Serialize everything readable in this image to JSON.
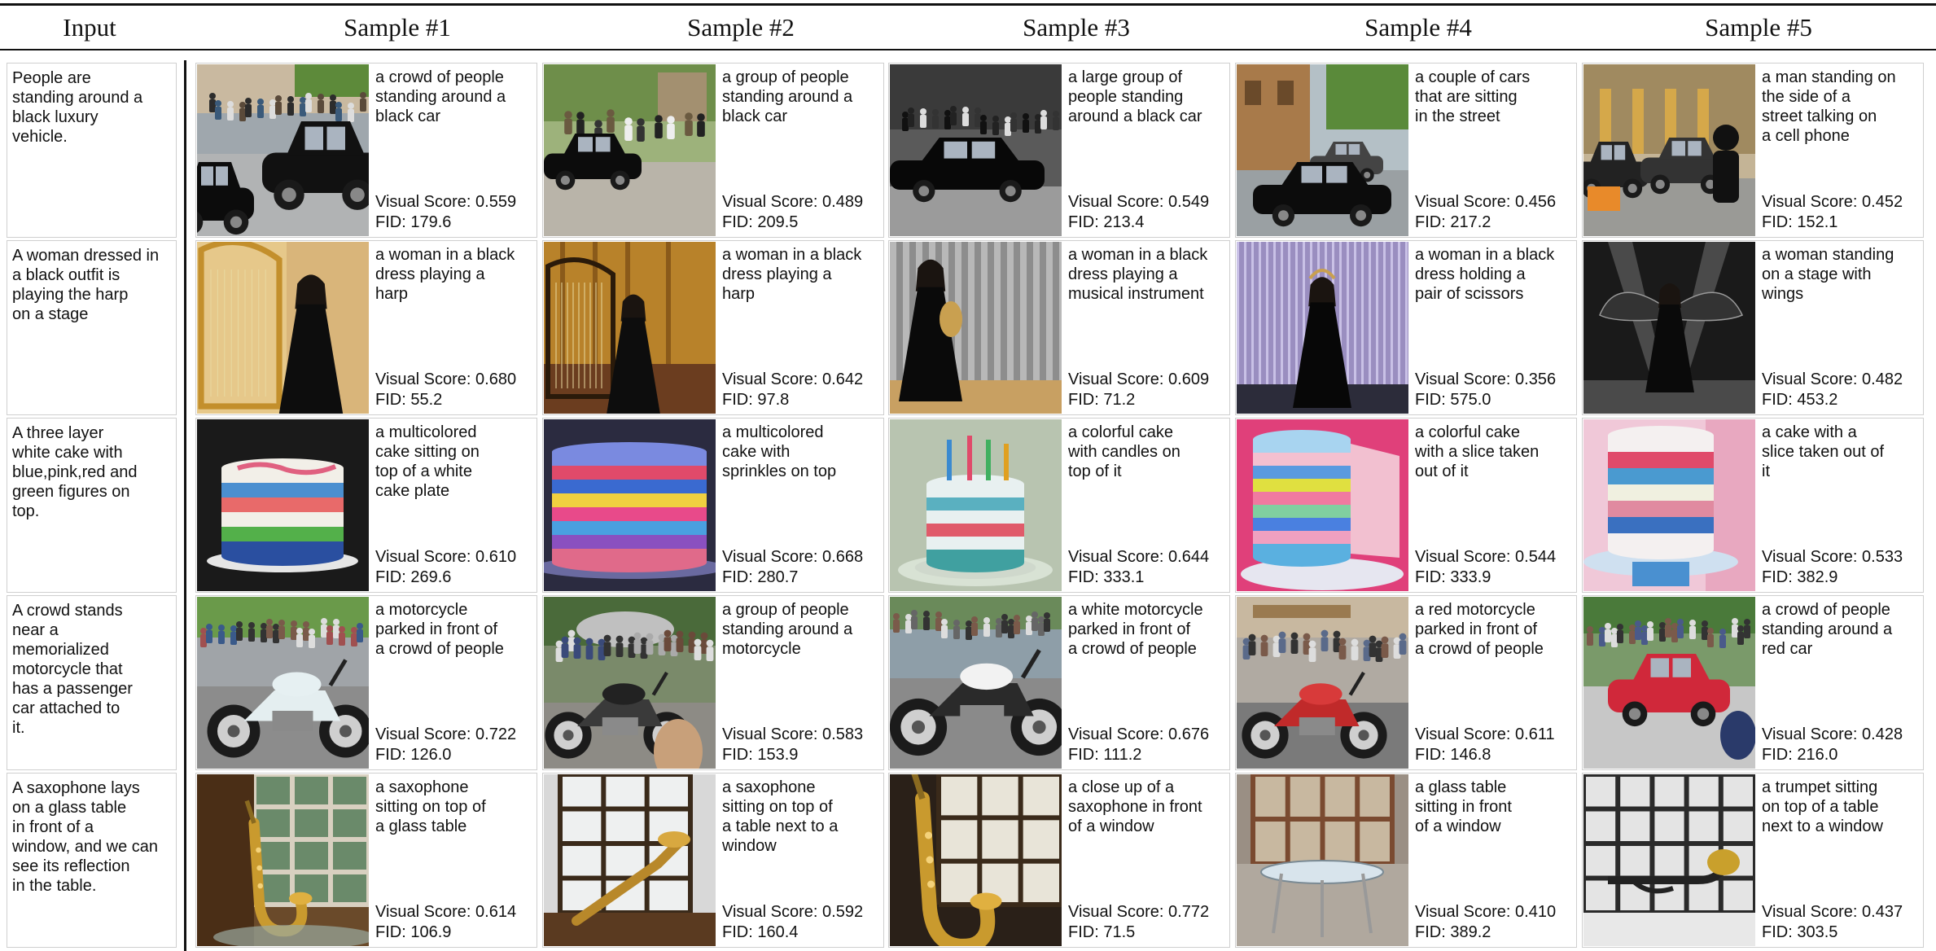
{
  "header": {
    "input_label": "Input",
    "samples": [
      "Sample #1",
      "Sample #2",
      "Sample #3",
      "Sample #4",
      "Sample #5"
    ]
  },
  "score_prefix": "Visual Score: ",
  "fid_prefix": "FID: ",
  "rows": [
    {
      "input": "People are\nstanding around a\nblack luxury\nvehicle.",
      "samples": [
        {
          "caption": "a crowd of people\nstanding around a\nblack car",
          "visual_score": "0.559",
          "fid": "179.6",
          "image": "crowd-black-car"
        },
        {
          "caption": "a group of people\nstanding around a\nblack car",
          "visual_score": "0.489",
          "fid": "209.5",
          "image": "group-black-car"
        },
        {
          "caption": "a large group of\npeople standing\naround a black car",
          "visual_score": "0.549",
          "fid": "213.4",
          "image": "black-limousine-crowd"
        },
        {
          "caption": "a couple of cars\nthat are sitting\nin the street",
          "visual_score": "0.456",
          "fid": "217.2",
          "image": "cars-on-street"
        },
        {
          "caption": "a man standing on\nthe side of a\nstreet talking on\na cell phone",
          "visual_score": "0.452",
          "fid": "152.1",
          "image": "man-by-car-street"
        }
      ]
    },
    {
      "input": "A woman dressed in\na black outfit is\nplaying the harp\non a stage",
      "samples": [
        {
          "caption": "a woman in a black\ndress playing a\nharp",
          "visual_score": "0.680",
          "fid": "55.2",
          "image": "woman-harp-gold"
        },
        {
          "caption": "a woman in a black\ndress playing a\nharp",
          "visual_score": "0.642",
          "fid": "97.8",
          "image": "woman-harp-stage"
        },
        {
          "caption": "a woman in a black\ndress playing a\nmusical instrument",
          "visual_score": "0.609",
          "fid": "71.2",
          "image": "woman-instrument-curtain"
        },
        {
          "caption": "a woman in a black\ndress holding a\npair of scissors",
          "visual_score": "0.356",
          "fid": "575.0",
          "image": "woman-purple-curtain"
        },
        {
          "caption": "a woman standing\non a stage with\nwings",
          "visual_score": "0.482",
          "fid": "453.2",
          "image": "woman-wings-stage"
        }
      ]
    },
    {
      "input": "A three layer\nwhite cake with\nblue,pink,red and\ngreen figures on\ntop.",
      "samples": [
        {
          "caption": "a multicolored\ncake sitting on\ntop of a white\ncake plate",
          "visual_score": "0.610",
          "fid": "269.6",
          "image": "white-cake-stripes"
        },
        {
          "caption": "a multicolored\ncake with\nsprinkles on top",
          "visual_score": "0.668",
          "fid": "280.7",
          "image": "rainbow-cake"
        },
        {
          "caption": "a colorful cake\nwith candles on\ntop of it",
          "visual_score": "0.644",
          "fid": "333.1",
          "image": "cake-with-candles"
        },
        {
          "caption": "a colorful cake\nwith a slice taken\nout of it",
          "visual_score": "0.544",
          "fid": "333.9",
          "image": "cake-slice-pink"
        },
        {
          "caption": "a cake with a\nslice taken out of\nit",
          "visual_score": "0.533",
          "fid": "382.9",
          "image": "cake-slice-blue-stand"
        }
      ]
    },
    {
      "input": "A crowd stands\nnear a\nmemorialized\nmotorcycle that\nhas a passenger\ncar attached to\nit.",
      "samples": [
        {
          "caption": "a motorcycle\nparked in front of\na crowd of people",
          "visual_score": "0.722",
          "fid": "126.0",
          "image": "white-motorcycle-crowd"
        },
        {
          "caption": "a group of people\nstanding around a\nmotorcycle",
          "visual_score": "0.583",
          "fid": "153.9",
          "image": "group-motorcycle"
        },
        {
          "caption": "a white motorcycle\nparked in front of\na crowd of people",
          "visual_score": "0.676",
          "fid": "111.2",
          "image": "white-motorcycle-street"
        },
        {
          "caption": "a red motorcycle\nparked in front of\na crowd of people",
          "visual_score": "0.611",
          "fid": "146.8",
          "image": "red-motorcycle-crowd"
        },
        {
          "caption": "a crowd of people\nstanding around a\nred car",
          "visual_score": "0.428",
          "fid": "216.0",
          "image": "red-car-crowd"
        }
      ]
    },
    {
      "input": "A saxophone lays\non a glass table\nin front of a\nwindow, and we can\nsee its reflection\nin the table.",
      "samples": [
        {
          "caption": "a saxophone\nsitting on top of\na glass table",
          "visual_score": "0.614",
          "fid": "106.9",
          "image": "saxophone-window-green"
        },
        {
          "caption": "a saxophone\nsitting on top of\na table next to a\nwindow",
          "visual_score": "0.592",
          "fid": "160.4",
          "image": "saxophone-white-window"
        },
        {
          "caption": "a close up of a\nsaxophone in front\nof a window",
          "visual_score": "0.772",
          "fid": "71.5",
          "image": "saxophone-closeup"
        },
        {
          "caption": "a glass table\nsitting in front\nof a window",
          "visual_score": "0.410",
          "fid": "389.2",
          "image": "glass-table-window"
        },
        {
          "caption": "a trumpet sitting\non top of a table\nnext to a window",
          "visual_score": "0.437",
          "fid": "303.5",
          "image": "trumpet-window"
        }
      ]
    }
  ],
  "palette": {
    "text": "#111111",
    "border": "#cfcfcf",
    "rule": "#111111"
  }
}
